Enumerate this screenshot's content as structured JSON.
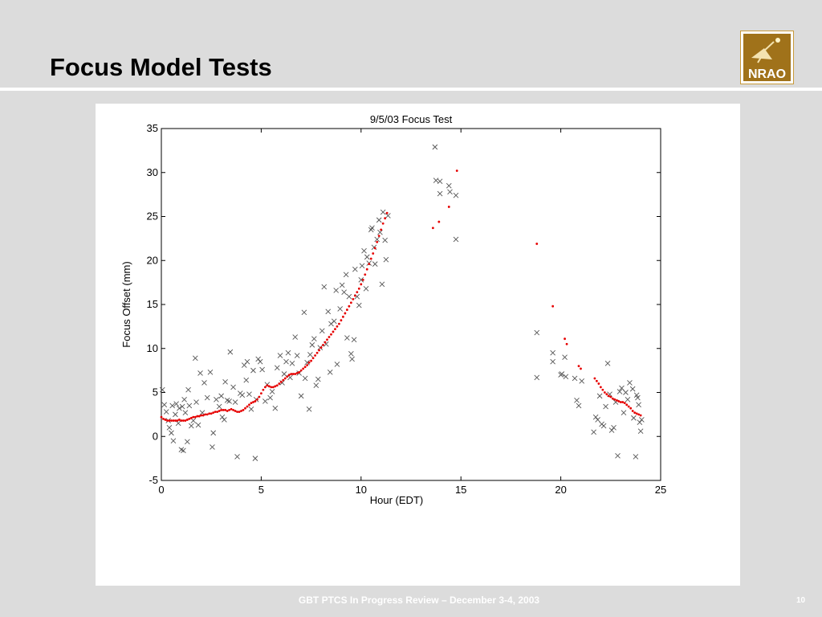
{
  "slide": {
    "title": "Focus Model Tests",
    "footer": "GBT PTCS In Progress  Review – December 3-4, 2003",
    "page_number": "10",
    "logo_text": "NRAO"
  },
  "colors": {
    "background": "#dcdcdc",
    "logo_gold": "#a0721a",
    "measured_marker": "#555555",
    "model_marker": "#e60000"
  },
  "chart_data": {
    "type": "scatter",
    "title": "9/5/03 Focus Test",
    "xlabel": "Hour (EDT)",
    "ylabel": "Focus Offset (mm)",
    "xlim": [
      0,
      25
    ],
    "ylim": [
      -5,
      35
    ],
    "xticks": [
      0,
      5,
      10,
      15,
      20,
      25
    ],
    "yticks": [
      -5,
      0,
      5,
      10,
      15,
      20,
      25,
      30,
      35
    ],
    "grid": false,
    "series": [
      {
        "marker": "x",
        "color": "#555555",
        "points": [
          [
            0.05,
            5.3
          ],
          [
            0.15,
            3.6
          ],
          [
            0.25,
            2.8
          ],
          [
            0.35,
            1.8
          ],
          [
            0.4,
            1.0
          ],
          [
            0.5,
            0.4
          ],
          [
            0.55,
            3.5
          ],
          [
            0.6,
            -0.5
          ],
          [
            0.7,
            2.5
          ],
          [
            0.75,
            3.7
          ],
          [
            0.85,
            1.5
          ],
          [
            0.9,
            3.2
          ],
          [
            1.0,
            -1.5
          ],
          [
            1.05,
            3.4
          ],
          [
            1.1,
            -1.6
          ],
          [
            1.15,
            4.2
          ],
          [
            1.2,
            2.7
          ],
          [
            1.3,
            -0.6
          ],
          [
            1.35,
            5.3
          ],
          [
            1.4,
            3.5
          ],
          [
            1.5,
            1.2
          ],
          [
            1.6,
            1.8
          ],
          [
            1.7,
            8.9
          ],
          [
            1.75,
            3.9
          ],
          [
            1.85,
            1.3
          ],
          [
            1.95,
            7.2
          ],
          [
            2.05,
            2.7
          ],
          [
            2.15,
            6.1
          ],
          [
            2.3,
            4.4
          ],
          [
            2.45,
            7.3
          ],
          [
            2.55,
            -1.2
          ],
          [
            2.6,
            0.4
          ],
          [
            2.75,
            4.2
          ],
          [
            2.9,
            3.4
          ],
          [
            3.0,
            4.6
          ],
          [
            3.05,
            2.2
          ],
          [
            3.15,
            1.9
          ],
          [
            3.2,
            6.2
          ],
          [
            3.3,
            4.1
          ],
          [
            3.4,
            4.0
          ],
          [
            3.45,
            9.6
          ],
          [
            3.6,
            5.6
          ],
          [
            3.7,
            3.9
          ],
          [
            3.8,
            -2.3
          ],
          [
            3.95,
            4.9
          ],
          [
            4.05,
            4.7
          ],
          [
            4.15,
            8.1
          ],
          [
            4.25,
            6.4
          ],
          [
            4.3,
            8.5
          ],
          [
            4.4,
            4.8
          ],
          [
            4.5,
            3.1
          ],
          [
            4.6,
            7.5
          ],
          [
            4.7,
            -2.5
          ],
          [
            4.75,
            4.2
          ],
          [
            4.85,
            8.8
          ],
          [
            4.95,
            8.5
          ],
          [
            5.05,
            7.6
          ],
          [
            5.2,
            4.0
          ],
          [
            5.3,
            5.9
          ],
          [
            5.45,
            4.4
          ],
          [
            5.55,
            5.1
          ],
          [
            5.7,
            3.2
          ],
          [
            5.8,
            7.8
          ],
          [
            5.95,
            9.2
          ],
          [
            6.05,
            6.1
          ],
          [
            6.15,
            7.1
          ],
          [
            6.25,
            8.5
          ],
          [
            6.35,
            9.5
          ],
          [
            6.45,
            6.7
          ],
          [
            6.55,
            8.3
          ],
          [
            6.7,
            11.3
          ],
          [
            6.8,
            9.2
          ],
          [
            6.9,
            7.2
          ],
          [
            7.0,
            4.6
          ],
          [
            7.15,
            14.1
          ],
          [
            7.2,
            6.6
          ],
          [
            7.3,
            8.4
          ],
          [
            7.4,
            3.1
          ],
          [
            7.45,
            9.3
          ],
          [
            7.55,
            10.4
          ],
          [
            7.65,
            11.1
          ],
          [
            7.75,
            5.8
          ],
          [
            7.85,
            6.5
          ],
          [
            7.95,
            10.1
          ],
          [
            8.05,
            12.0
          ],
          [
            8.15,
            17.0
          ],
          [
            8.25,
            10.5
          ],
          [
            8.35,
            14.2
          ],
          [
            8.45,
            7.3
          ],
          [
            8.5,
            12.8
          ],
          [
            8.65,
            13.1
          ],
          [
            8.75,
            16.6
          ],
          [
            8.8,
            8.2
          ],
          [
            8.95,
            14.5
          ],
          [
            9.05,
            17.2
          ],
          [
            9.15,
            16.4
          ],
          [
            9.25,
            18.4
          ],
          [
            9.3,
            11.2
          ],
          [
            9.4,
            15.9
          ],
          [
            9.5,
            9.4
          ],
          [
            9.55,
            8.8
          ],
          [
            9.65,
            11.0
          ],
          [
            9.7,
            19.0
          ],
          [
            9.8,
            15.9
          ],
          [
            9.9,
            14.9
          ],
          [
            10.0,
            17.8
          ],
          [
            10.05,
            19.4
          ],
          [
            10.15,
            21.1
          ],
          [
            10.25,
            16.8
          ],
          [
            10.3,
            20.4
          ],
          [
            10.4,
            19.7
          ],
          [
            10.5,
            23.5
          ],
          [
            10.55,
            23.7
          ],
          [
            10.65,
            21.5
          ],
          [
            10.7,
            19.6
          ],
          [
            10.8,
            22.4
          ],
          [
            10.9,
            24.6
          ],
          [
            10.95,
            23.2
          ],
          [
            11.05,
            17.3
          ],
          [
            11.1,
            25.5
          ],
          [
            11.2,
            22.3
          ],
          [
            11.25,
            20.1
          ],
          [
            11.35,
            25.1
          ],
          [
            13.7,
            32.9
          ],
          [
            13.75,
            29.1
          ],
          [
            13.95,
            29.0
          ],
          [
            13.95,
            27.6
          ],
          [
            14.4,
            28.5
          ],
          [
            14.45,
            27.8
          ],
          [
            14.75,
            27.4
          ],
          [
            14.75,
            22.4
          ],
          [
            18.8,
            11.8
          ],
          [
            18.8,
            6.7
          ],
          [
            19.6,
            9.5
          ],
          [
            19.6,
            8.5
          ],
          [
            20.0,
            7.0
          ],
          [
            20.05,
            7.1
          ],
          [
            20.2,
            9.0
          ],
          [
            20.25,
            6.8
          ],
          [
            20.7,
            6.6
          ],
          [
            20.8,
            4.1
          ],
          [
            20.9,
            3.5
          ],
          [
            21.05,
            6.3
          ],
          [
            21.65,
            0.5
          ],
          [
            21.75,
            2.2
          ],
          [
            21.85,
            1.9
          ],
          [
            21.95,
            4.6
          ],
          [
            22.05,
            1.4
          ],
          [
            22.15,
            1.2
          ],
          [
            22.25,
            3.4
          ],
          [
            22.35,
            8.3
          ],
          [
            22.45,
            4.8
          ],
          [
            22.55,
            0.7
          ],
          [
            22.65,
            1.0
          ],
          [
            22.75,
            3.9
          ],
          [
            22.85,
            -2.2
          ],
          [
            22.95,
            5.1
          ],
          [
            23.05,
            5.5
          ],
          [
            23.15,
            2.7
          ],
          [
            23.25,
            5.0
          ],
          [
            23.35,
            4.2
          ],
          [
            23.45,
            6.1
          ],
          [
            23.6,
            5.4
          ],
          [
            23.65,
            2.1
          ],
          [
            23.75,
            -2.3
          ],
          [
            23.8,
            4.7
          ],
          [
            23.85,
            4.4
          ],
          [
            23.9,
            3.6
          ],
          [
            23.95,
            1.6
          ],
          [
            24.0,
            0.6
          ],
          [
            24.05,
            1.9
          ]
        ]
      },
      {
        "marker": "dot",
        "color": "#e60000",
        "points": [
          [
            0.0,
            2.2
          ],
          [
            0.1,
            2.0
          ],
          [
            0.2,
            1.9
          ],
          [
            0.3,
            1.8
          ],
          [
            0.4,
            1.8
          ],
          [
            0.5,
            1.8
          ],
          [
            0.6,
            1.8
          ],
          [
            0.7,
            1.8
          ],
          [
            0.8,
            1.8
          ],
          [
            0.9,
            1.9
          ],
          [
            1.0,
            1.8
          ],
          [
            1.1,
            1.8
          ],
          [
            1.2,
            1.8
          ],
          [
            1.3,
            1.9
          ],
          [
            1.4,
            2.0
          ],
          [
            1.5,
            2.1
          ],
          [
            1.6,
            2.2
          ],
          [
            1.7,
            2.2
          ],
          [
            1.8,
            2.3
          ],
          [
            1.9,
            2.3
          ],
          [
            2.0,
            2.4
          ],
          [
            2.1,
            2.4
          ],
          [
            2.2,
            2.5
          ],
          [
            2.3,
            2.5
          ],
          [
            2.4,
            2.6
          ],
          [
            2.5,
            2.6
          ],
          [
            2.6,
            2.7
          ],
          [
            2.7,
            2.8
          ],
          [
            2.8,
            2.8
          ],
          [
            2.9,
            2.9
          ],
          [
            3.0,
            3.0
          ],
          [
            3.1,
            3.0
          ],
          [
            3.2,
            3.0
          ],
          [
            3.3,
            2.9
          ],
          [
            3.4,
            3.0
          ],
          [
            3.5,
            3.1
          ],
          [
            3.6,
            3.0
          ],
          [
            3.7,
            2.9
          ],
          [
            3.8,
            2.8
          ],
          [
            3.9,
            2.8
          ],
          [
            4.0,
            2.9
          ],
          [
            4.1,
            3.0
          ],
          [
            4.2,
            3.2
          ],
          [
            4.3,
            3.4
          ],
          [
            4.4,
            3.6
          ],
          [
            4.5,
            3.8
          ],
          [
            4.6,
            3.9
          ],
          [
            4.7,
            4.0
          ],
          [
            4.8,
            4.2
          ],
          [
            4.9,
            4.5
          ],
          [
            5.0,
            4.9
          ],
          [
            5.1,
            5.3
          ],
          [
            5.2,
            5.6
          ],
          [
            5.3,
            5.8
          ],
          [
            5.4,
            5.7
          ],
          [
            5.5,
            5.6
          ],
          [
            5.6,
            5.6
          ],
          [
            5.7,
            5.7
          ],
          [
            5.8,
            5.8
          ],
          [
            5.9,
            6.0
          ],
          [
            6.0,
            6.2
          ],
          [
            6.1,
            6.4
          ],
          [
            6.2,
            6.6
          ],
          [
            6.3,
            6.8
          ],
          [
            6.4,
            7.0
          ],
          [
            6.5,
            7.1
          ],
          [
            6.6,
            7.1
          ],
          [
            6.7,
            7.1
          ],
          [
            6.8,
            7.2
          ],
          [
            6.9,
            7.3
          ],
          [
            7.0,
            7.5
          ],
          [
            7.1,
            7.7
          ],
          [
            7.2,
            7.9
          ],
          [
            7.3,
            8.1
          ],
          [
            7.4,
            8.4
          ],
          [
            7.5,
            8.6
          ],
          [
            7.6,
            8.9
          ],
          [
            7.7,
            9.2
          ],
          [
            7.8,
            9.5
          ],
          [
            7.9,
            9.8
          ],
          [
            8.0,
            10.1
          ],
          [
            8.1,
            10.4
          ],
          [
            8.2,
            10.7
          ],
          [
            8.3,
            11.0
          ],
          [
            8.4,
            11.3
          ],
          [
            8.5,
            11.6
          ],
          [
            8.6,
            11.9
          ],
          [
            8.7,
            12.2
          ],
          [
            8.8,
            12.5
          ],
          [
            8.9,
            12.8
          ],
          [
            9.0,
            13.2
          ],
          [
            9.1,
            13.6
          ],
          [
            9.2,
            14.0
          ],
          [
            9.3,
            14.4
          ],
          [
            9.4,
            14.8
          ],
          [
            9.5,
            15.2
          ],
          [
            9.6,
            15.6
          ],
          [
            9.7,
            16.0
          ],
          [
            9.8,
            16.4
          ],
          [
            9.9,
            16.8
          ],
          [
            10.0,
            17.3
          ],
          [
            10.1,
            17.8
          ],
          [
            10.2,
            18.4
          ],
          [
            10.3,
            19.0
          ],
          [
            10.4,
            19.6
          ],
          [
            10.5,
            20.2
          ],
          [
            10.6,
            20.8
          ],
          [
            10.7,
            21.4
          ],
          [
            10.8,
            22.1
          ],
          [
            10.9,
            22.8
          ],
          [
            11.0,
            23.5
          ],
          [
            11.1,
            24.2
          ],
          [
            11.2,
            24.8
          ],
          [
            11.3,
            25.4
          ],
          [
            13.6,
            23.7
          ],
          [
            13.9,
            24.4
          ],
          [
            14.4,
            26.1
          ],
          [
            14.8,
            30.2
          ],
          [
            18.8,
            21.9
          ],
          [
            19.6,
            14.8
          ],
          [
            20.2,
            11.1
          ],
          [
            20.3,
            10.5
          ],
          [
            20.9,
            8.0
          ],
          [
            21.0,
            7.7
          ],
          [
            21.7,
            6.6
          ],
          [
            21.8,
            6.3
          ],
          [
            21.9,
            6.0
          ],
          [
            22.0,
            5.6
          ],
          [
            22.1,
            5.3
          ],
          [
            22.2,
            5.0
          ],
          [
            22.3,
            4.8
          ],
          [
            22.4,
            4.6
          ],
          [
            22.5,
            4.5
          ],
          [
            22.6,
            4.3
          ],
          [
            22.7,
            4.2
          ],
          [
            22.8,
            4.1
          ],
          [
            22.9,
            4.0
          ],
          [
            23.0,
            3.9
          ],
          [
            23.1,
            3.9
          ],
          [
            23.2,
            3.8
          ],
          [
            23.3,
            3.6
          ],
          [
            23.4,
            3.4
          ],
          [
            23.5,
            3.2
          ],
          [
            23.6,
            2.9
          ],
          [
            23.7,
            2.7
          ],
          [
            23.8,
            2.6
          ],
          [
            23.9,
            2.5
          ],
          [
            24.0,
            2.4
          ]
        ]
      }
    ]
  }
}
